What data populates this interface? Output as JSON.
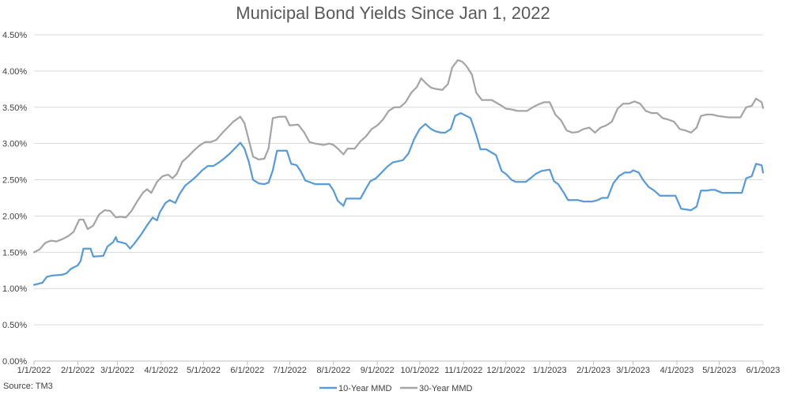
{
  "chart_data": {
    "type": "line",
    "title": "Municipal Bond Yields Since Jan 1, 2022",
    "xlabel": "",
    "ylabel": "",
    "ylim": [
      0,
      4.5
    ],
    "y_ticks": [
      "0.00%",
      "0.50%",
      "1.00%",
      "1.50%",
      "2.00%",
      "2.50%",
      "3.00%",
      "3.50%",
      "4.00%",
      "4.50%"
    ],
    "x_ticks": [
      "1/1/2022",
      "2/1/2022",
      "3/1/2022",
      "4/1/2022",
      "5/1/2022",
      "6/1/2022",
      "7/1/2022",
      "8/1/2022",
      "9/1/2022",
      "10/1/2022",
      "11/1/2022",
      "12/1/2022",
      "1/1/2023",
      "2/1/2023",
      "3/1/2023",
      "4/1/2023",
      "5/1/2023",
      "6/1/2023"
    ],
    "grid": true,
    "legend_position": "bottom",
    "source": "Source: TM3",
    "series": [
      {
        "name": "10-Year MMD",
        "color": "#5B9BD5",
        "points": [
          [
            "1/1/2022",
            1.05
          ],
          [
            "1/7/2022",
            1.08
          ],
          [
            "1/10/2022",
            1.16
          ],
          [
            "1/14/2022",
            1.18
          ],
          [
            "1/21/2022",
            1.19
          ],
          [
            "1/24/2022",
            1.21
          ],
          [
            "1/27/2022",
            1.27
          ],
          [
            "2/1/2022",
            1.32
          ],
          [
            "2/3/2022",
            1.38
          ],
          [
            "2/5/2022",
            1.55
          ],
          [
            "2/10/2022",
            1.55
          ],
          [
            "2/12/2022",
            1.44
          ],
          [
            "2/19/2022",
            1.45
          ],
          [
            "2/22/2022",
            1.58
          ],
          [
            "2/26/2022",
            1.64
          ],
          [
            "2/28/2022",
            1.71
          ],
          [
            "3/1/2022",
            1.65
          ],
          [
            "3/7/2022",
            1.62
          ],
          [
            "3/10/2022",
            1.55
          ],
          [
            "3/13/2022",
            1.62
          ],
          [
            "3/18/2022",
            1.75
          ],
          [
            "3/22/2022",
            1.87
          ],
          [
            "3/26/2022",
            1.98
          ],
          [
            "3/29/2022",
            1.94
          ],
          [
            "3/31/2022",
            2.05
          ],
          [
            "4/4/2022",
            2.18
          ],
          [
            "4/7/2022",
            2.22
          ],
          [
            "4/11/2022",
            2.18
          ],
          [
            "4/14/2022",
            2.3
          ],
          [
            "4/18/2022",
            2.42
          ],
          [
            "4/22/2022",
            2.48
          ],
          [
            "4/26/2022",
            2.55
          ],
          [
            "4/30/2022",
            2.63
          ],
          [
            "5/4/2022",
            2.69
          ],
          [
            "5/8/2022",
            2.69
          ],
          [
            "5/12/2022",
            2.74
          ],
          [
            "5/16/2022",
            2.8
          ],
          [
            "5/20/2022",
            2.87
          ],
          [
            "5/24/2022",
            2.95
          ],
          [
            "5/27/2022",
            3.01
          ],
          [
            "5/30/2022",
            2.93
          ],
          [
            "6/2/2022",
            2.75
          ],
          [
            "6/5/2022",
            2.5
          ],
          [
            "6/9/2022",
            2.45
          ],
          [
            "6/13/2022",
            2.44
          ],
          [
            "6/16/2022",
            2.46
          ],
          [
            "6/19/2022",
            2.63
          ],
          [
            "6/22/2022",
            2.9
          ],
          [
            "6/29/2022",
            2.9
          ],
          [
            "7/2/2022",
            2.72
          ],
          [
            "7/6/2022",
            2.7
          ],
          [
            "7/9/2022",
            2.61
          ],
          [
            "7/12/2022",
            2.49
          ],
          [
            "7/19/2022",
            2.44
          ],
          [
            "7/29/2022",
            2.44
          ],
          [
            "8/1/2022",
            2.35
          ],
          [
            "8/4/2022",
            2.21
          ],
          [
            "8/8/2022",
            2.14
          ],
          [
            "8/10/2022",
            2.24
          ],
          [
            "8/20/2022",
            2.24
          ],
          [
            "8/24/2022",
            2.38
          ],
          [
            "8/27/2022",
            2.48
          ],
          [
            "8/31/2022",
            2.52
          ],
          [
            "9/4/2022",
            2.6
          ],
          [
            "9/8/2022",
            2.68
          ],
          [
            "9/12/2022",
            2.74
          ],
          [
            "9/19/2022",
            2.77
          ],
          [
            "9/23/2022",
            2.86
          ],
          [
            "9/27/2022",
            3.06
          ],
          [
            "10/1/2022",
            3.2
          ],
          [
            "10/5/2022",
            3.27
          ],
          [
            "10/9/2022",
            3.2
          ],
          [
            "10/12/2022",
            3.17
          ],
          [
            "10/16/2022",
            3.15
          ],
          [
            "10/19/2022",
            3.15
          ],
          [
            "10/23/2022",
            3.2
          ],
          [
            "10/26/2022",
            3.38
          ],
          [
            "10/30/2022",
            3.42
          ],
          [
            "11/3/2022",
            3.38
          ],
          [
            "11/6/2022",
            3.35
          ],
          [
            "11/10/2022",
            3.12
          ],
          [
            "11/13/2022",
            2.92
          ],
          [
            "11/17/2022",
            2.92
          ],
          [
            "11/24/2022",
            2.84
          ],
          [
            "11/28/2022",
            2.62
          ],
          [
            "12/1/2022",
            2.58
          ],
          [
            "12/5/2022",
            2.5
          ],
          [
            "12/8/2022",
            2.47
          ],
          [
            "12/15/2022",
            2.47
          ],
          [
            "12/19/2022",
            2.53
          ],
          [
            "12/22/2022",
            2.58
          ],
          [
            "12/26/2022",
            2.62
          ],
          [
            "1/1/2023",
            2.64
          ],
          [
            "1/4/2023",
            2.48
          ],
          [
            "1/7/2023",
            2.44
          ],
          [
            "1/11/2023",
            2.32
          ],
          [
            "1/14/2023",
            2.22
          ],
          [
            "1/21/2023",
            2.22
          ],
          [
            "1/25/2023",
            2.2
          ],
          [
            "1/31/2023",
            2.2
          ],
          [
            "2/4/2023",
            2.22
          ],
          [
            "2/7/2023",
            2.25
          ],
          [
            "2/11/2023",
            2.25
          ],
          [
            "2/15/2023",
            2.45
          ],
          [
            "2/19/2023",
            2.55
          ],
          [
            "2/23/2023",
            2.6
          ],
          [
            "2/27/2023",
            2.6
          ],
          [
            "3/1/2023",
            2.63
          ],
          [
            "3/5/2023",
            2.6
          ],
          [
            "3/8/2023",
            2.5
          ],
          [
            "3/12/2023",
            2.4
          ],
          [
            "3/16/2023",
            2.35
          ],
          [
            "3/20/2023",
            2.28
          ],
          [
            "3/24/2023",
            2.28
          ],
          [
            "3/31/2023",
            2.28
          ],
          [
            "4/4/2023",
            2.1
          ],
          [
            "4/11/2023",
            2.08
          ],
          [
            "4/15/2023",
            2.13
          ],
          [
            "4/18/2023",
            2.35
          ],
          [
            "4/22/2023",
            2.35
          ],
          [
            "4/25/2023",
            2.36
          ],
          [
            "4/28/2023",
            2.36
          ],
          [
            "5/3/2023",
            2.32
          ],
          [
            "5/10/2023",
            2.32
          ],
          [
            "5/17/2023",
            2.32
          ],
          [
            "5/20/2023",
            2.52
          ],
          [
            "5/24/2023",
            2.55
          ],
          [
            "5/27/2023",
            2.72
          ],
          [
            "5/31/2023",
            2.7
          ],
          [
            "6/1/2023",
            2.6
          ]
        ]
      },
      {
        "name": "30-Year MMD",
        "color": "#A5A5A5",
        "points": [
          [
            "1/1/2022",
            1.5
          ],
          [
            "1/5/2022",
            1.54
          ],
          [
            "1/9/2022",
            1.63
          ],
          [
            "1/13/2022",
            1.66
          ],
          [
            "1/17/2022",
            1.65
          ],
          [
            "1/21/2022",
            1.68
          ],
          [
            "1/25/2022",
            1.72
          ],
          [
            "1/29/2022",
            1.78
          ],
          [
            "2/2/2022",
            1.95
          ],
          [
            "2/5/2022",
            1.95
          ],
          [
            "2/8/2022",
            1.82
          ],
          [
            "2/12/2022",
            1.87
          ],
          [
            "2/16/2022",
            2.02
          ],
          [
            "2/20/2022",
            2.08
          ],
          [
            "2/24/2022",
            2.07
          ],
          [
            "2/28/2022",
            1.98
          ],
          [
            "3/3/2022",
            1.99
          ],
          [
            "3/7/2022",
            1.98
          ],
          [
            "3/11/2022",
            2.07
          ],
          [
            "3/15/2022",
            2.2
          ],
          [
            "3/19/2022",
            2.32
          ],
          [
            "3/22/2022",
            2.37
          ],
          [
            "3/25/2022",
            2.32
          ],
          [
            "3/29/2022",
            2.47
          ],
          [
            "4/2/2022",
            2.55
          ],
          [
            "4/6/2022",
            2.57
          ],
          [
            "4/9/2022",
            2.52
          ],
          [
            "4/12/2022",
            2.58
          ],
          [
            "4/16/2022",
            2.75
          ],
          [
            "4/20/2022",
            2.82
          ],
          [
            "4/24/2022",
            2.9
          ],
          [
            "4/28/2022",
            2.97
          ],
          [
            "5/2/2022",
            3.02
          ],
          [
            "5/6/2022",
            3.02
          ],
          [
            "5/10/2022",
            3.05
          ],
          [
            "5/14/2022",
            3.14
          ],
          [
            "5/18/2022",
            3.22
          ],
          [
            "5/22/2022",
            3.3
          ],
          [
            "5/27/2022",
            3.37
          ],
          [
            "5/30/2022",
            3.28
          ],
          [
            "6/2/2022",
            3.05
          ],
          [
            "6/5/2022",
            2.82
          ],
          [
            "6/9/2022",
            2.78
          ],
          [
            "6/13/2022",
            2.79
          ],
          [
            "6/16/2022",
            2.93
          ],
          [
            "6/19/2022",
            3.35
          ],
          [
            "6/24/2022",
            3.37
          ],
          [
            "6/28/2022",
            3.37
          ],
          [
            "7/1/2022",
            3.25
          ],
          [
            "7/7/2022",
            3.26
          ],
          [
            "7/11/2022",
            3.16
          ],
          [
            "7/15/2022",
            3.02
          ],
          [
            "7/19/2022",
            3.0
          ],
          [
            "7/25/2022",
            2.98
          ],
          [
            "7/29/2022",
            3.0
          ],
          [
            "8/1/2022",
            2.98
          ],
          [
            "8/4/2022",
            2.93
          ],
          [
            "8/8/2022",
            2.85
          ],
          [
            "8/11/2022",
            2.93
          ],
          [
            "8/16/2022",
            2.93
          ],
          [
            "8/20/2022",
            3.03
          ],
          [
            "8/24/2022",
            3.1
          ],
          [
            "8/28/2022",
            3.2
          ],
          [
            "9/1/2022",
            3.25
          ],
          [
            "9/5/2022",
            3.33
          ],
          [
            "9/9/2022",
            3.45
          ],
          [
            "9/13/2022",
            3.5
          ],
          [
            "9/17/2022",
            3.5
          ],
          [
            "9/21/2022",
            3.57
          ],
          [
            "9/25/2022",
            3.7
          ],
          [
            "9/29/2022",
            3.78
          ],
          [
            "10/2/2022",
            3.9
          ],
          [
            "10/6/2022",
            3.82
          ],
          [
            "10/9/2022",
            3.77
          ],
          [
            "10/13/2022",
            3.75
          ],
          [
            "10/17/2022",
            3.74
          ],
          [
            "10/21/2022",
            3.82
          ],
          [
            "10/24/2022",
            4.05
          ],
          [
            "10/28/2022",
            4.15
          ],
          [
            "10/31/2022",
            4.13
          ],
          [
            "11/3/2022",
            4.07
          ],
          [
            "11/7/2022",
            3.95
          ],
          [
            "11/10/2022",
            3.7
          ],
          [
            "11/14/2022",
            3.6
          ],
          [
            "11/21/2022",
            3.6
          ],
          [
            "11/28/2022",
            3.52
          ],
          [
            "12/1/2022",
            3.48
          ],
          [
            "12/5/2022",
            3.47
          ],
          [
            "12/9/2022",
            3.45
          ],
          [
            "12/16/2022",
            3.45
          ],
          [
            "12/20/2022",
            3.5
          ],
          [
            "12/24/2022",
            3.54
          ],
          [
            "12/28/2022",
            3.57
          ],
          [
            "1/1/2023",
            3.57
          ],
          [
            "1/5/2023",
            3.4
          ],
          [
            "1/9/2023",
            3.32
          ],
          [
            "1/13/2023",
            3.18
          ],
          [
            "1/17/2023",
            3.15
          ],
          [
            "1/21/2023",
            3.16
          ],
          [
            "1/25/2023",
            3.2
          ],
          [
            "1/29/2023",
            3.22
          ],
          [
            "2/2/2023",
            3.15
          ],
          [
            "2/6/2023",
            3.22
          ],
          [
            "2/10/2023",
            3.25
          ],
          [
            "2/14/2023",
            3.3
          ],
          [
            "2/18/2023",
            3.48
          ],
          [
            "2/22/2023",
            3.55
          ],
          [
            "2/26/2023",
            3.55
          ],
          [
            "3/2/2023",
            3.58
          ],
          [
            "3/6/2023",
            3.55
          ],
          [
            "3/10/2023",
            3.45
          ],
          [
            "3/14/2023",
            3.42
          ],
          [
            "3/18/2023",
            3.42
          ],
          [
            "3/22/2023",
            3.35
          ],
          [
            "3/26/2023",
            3.33
          ],
          [
            "3/30/2023",
            3.3
          ],
          [
            "4/3/2023",
            3.2
          ],
          [
            "4/7/2023",
            3.18
          ],
          [
            "4/11/2023",
            3.15
          ],
          [
            "4/15/2023",
            3.22
          ],
          [
            "4/18/2023",
            3.38
          ],
          [
            "4/22/2023",
            3.4
          ],
          [
            "4/26/2023",
            3.4
          ],
          [
            "4/30/2023",
            3.38
          ],
          [
            "5/4/2023",
            3.37
          ],
          [
            "5/8/2023",
            3.36
          ],
          [
            "5/12/2023",
            3.36
          ],
          [
            "5/16/2023",
            3.36
          ],
          [
            "5/20/2023",
            3.5
          ],
          [
            "5/24/2023",
            3.52
          ],
          [
            "5/27/2023",
            3.62
          ],
          [
            "5/31/2023",
            3.57
          ],
          [
            "6/1/2023",
            3.49
          ]
        ]
      }
    ]
  }
}
